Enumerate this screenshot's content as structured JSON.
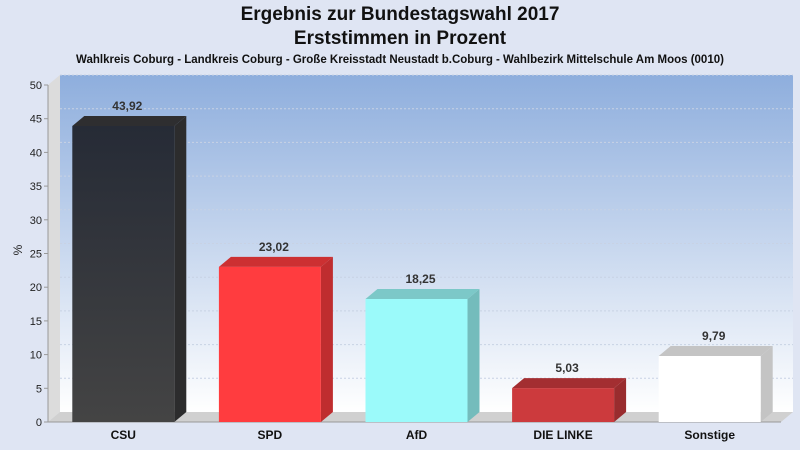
{
  "chart_data": {
    "type": "bar",
    "title": "Ergebnis zur Bundestagswahl 2017",
    "subtitle": "Erststimmen in Prozent",
    "caption": "Wahlkreis Coburg - Landkreis Coburg - Große Kreisstadt Neustadt b.Coburg - Wahlbezirk Mittelschule Am Moos (0010)",
    "xlabel": "",
    "ylabel": "%",
    "ylim": [
      0,
      50
    ],
    "yticks": [
      0,
      5,
      10,
      15,
      20,
      25,
      30,
      35,
      40,
      45,
      50
    ],
    "grid": true,
    "categories": [
      "CSU",
      "SPD",
      "AfD",
      "DIE LINKE",
      "Sonstige"
    ],
    "values": [
      43.92,
      23.02,
      18.25,
      5.03,
      9.79
    ],
    "value_labels": [
      "43,92",
      "23,02",
      "18,25",
      "5,03",
      "9,79"
    ],
    "colors": [
      "#3a3a3c",
      "#ff3c3f",
      "#9bfafa",
      "#cc3a3d",
      "#ffffff"
    ]
  }
}
